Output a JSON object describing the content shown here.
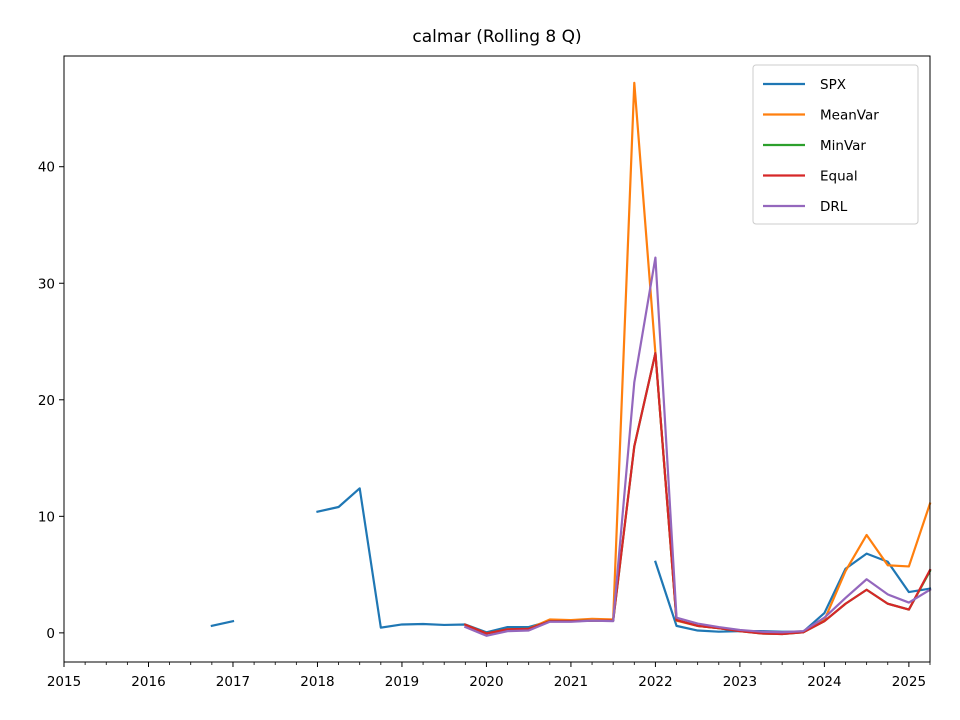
{
  "chart_data": {
    "type": "line",
    "title": "calmar (Rolling 8 Q)",
    "xlabel": "",
    "ylabel": "",
    "xlim": [
      2015.0,
      2025.25
    ],
    "ylim": [
      -2.5,
      49.5
    ],
    "x_ticks": [
      2015,
      2016,
      2017,
      2018,
      2019,
      2020,
      2021,
      2022,
      2023,
      2024,
      2025
    ],
    "x_tick_labels": [
      "2015",
      "2016",
      "2017",
      "2018",
      "2019",
      "2020",
      "2021",
      "2022",
      "2023",
      "2024",
      "2025"
    ],
    "y_ticks": [
      0,
      10,
      20,
      30,
      40
    ],
    "y_tick_labels": [
      "0",
      "10",
      "20",
      "30",
      "40"
    ],
    "grid": false,
    "legend_position": "top-right",
    "series": [
      {
        "name": "SPX",
        "color": "#1f77b4",
        "x": [
          2016.75,
          2017.0,
          2018.0,
          2018.25,
          2018.5,
          2018.75,
          2019.0,
          2019.25,
          2019.5,
          2019.75,
          2020.0,
          2020.25,
          2020.5,
          2020.75,
          2021.0,
          2021.25,
          2021.5,
          2022.0,
          2022.25,
          2022.5,
          2022.75,
          2023.0,
          2023.25,
          2023.5,
          2023.75,
          2024.0,
          2024.25,
          2024.5,
          2024.75,
          2025.0,
          2025.25
        ],
        "values": [
          0.6,
          1.0,
          10.4,
          10.8,
          12.4,
          0.45,
          0.72,
          0.76,
          0.68,
          0.72,
          0.05,
          0.5,
          0.5,
          1.0,
          1.0,
          1.05,
          1.1,
          6.1,
          0.6,
          0.2,
          0.1,
          0.15,
          0.15,
          0.1,
          0.1,
          1.7,
          5.5,
          6.8,
          6.1,
          3.5,
          3.8
        ],
        "gaps_after_x": [
          2017.0,
          2021.5
        ]
      },
      {
        "name": "MeanVar",
        "color": "#ff7f0e",
        "x": [
          2019.75,
          2020.0,
          2020.25,
          2020.5,
          2020.75,
          2021.0,
          2021.25,
          2021.5,
          2021.75,
          2022.0,
          2022.25,
          2022.5,
          2022.75,
          2023.0,
          2023.25,
          2023.5,
          2023.75,
          2024.0,
          2024.25,
          2024.5,
          2024.75,
          2025.0,
          2025.25
        ],
        "values": [
          0.7,
          -0.05,
          0.3,
          0.35,
          1.15,
          1.1,
          1.2,
          1.15,
          47.2,
          24.0,
          1.05,
          0.6,
          0.4,
          0.2,
          0.05,
          0.0,
          0.05,
          1.1,
          5.3,
          8.4,
          5.8,
          5.7,
          11.1
        ]
      },
      {
        "name": "MinVar",
        "color": "#2ca02c",
        "x": [
          2019.75,
          2020.0,
          2020.25,
          2020.5,
          2020.75,
          2021.0,
          2021.25,
          2021.5,
          2021.75,
          2022.0,
          2022.25,
          2022.5,
          2022.75,
          2023.0,
          2023.25,
          2023.5,
          2023.75,
          2024.0,
          2024.25,
          2024.5,
          2024.75,
          2025.0,
          2025.25
        ],
        "values": [
          0.7,
          -0.05,
          0.3,
          0.35,
          1.0,
          1.0,
          1.05,
          1.05,
          16.0,
          24.0,
          1.1,
          0.6,
          0.4,
          0.15,
          -0.05,
          -0.1,
          0.05,
          1.0,
          2.5,
          3.7,
          2.5,
          2.0,
          5.3
        ]
      },
      {
        "name": "Equal",
        "color": "#d62728",
        "x": [
          2019.75,
          2020.0,
          2020.25,
          2020.5,
          2020.75,
          2021.0,
          2021.25,
          2021.5,
          2021.75,
          2022.0,
          2022.25,
          2022.5,
          2022.75,
          2023.0,
          2023.25,
          2023.5,
          2023.75,
          2024.0,
          2024.25,
          2024.5,
          2024.75,
          2025.0,
          2025.25
        ],
        "values": [
          0.7,
          -0.05,
          0.3,
          0.35,
          1.0,
          1.0,
          1.05,
          1.05,
          16.0,
          24.0,
          1.1,
          0.6,
          0.4,
          0.15,
          -0.05,
          -0.1,
          0.05,
          1.0,
          2.5,
          3.7,
          2.5,
          2.0,
          5.4
        ]
      },
      {
        "name": "DRL",
        "color": "#9467bd",
        "x": [
          2019.75,
          2020.0,
          2020.25,
          2020.5,
          2020.75,
          2021.0,
          2021.25,
          2021.5,
          2021.75,
          2022.0,
          2022.25,
          2022.5,
          2022.75,
          2023.0,
          2023.25,
          2023.5,
          2023.75,
          2024.0,
          2024.25,
          2024.5,
          2024.75,
          2025.0,
          2025.25
        ],
        "values": [
          0.5,
          -0.25,
          0.15,
          0.2,
          0.95,
          0.95,
          1.05,
          1.0,
          21.5,
          32.2,
          1.3,
          0.8,
          0.5,
          0.25,
          0.1,
          0.05,
          0.15,
          1.3,
          3.0,
          4.6,
          3.3,
          2.6,
          3.7
        ]
      }
    ]
  }
}
